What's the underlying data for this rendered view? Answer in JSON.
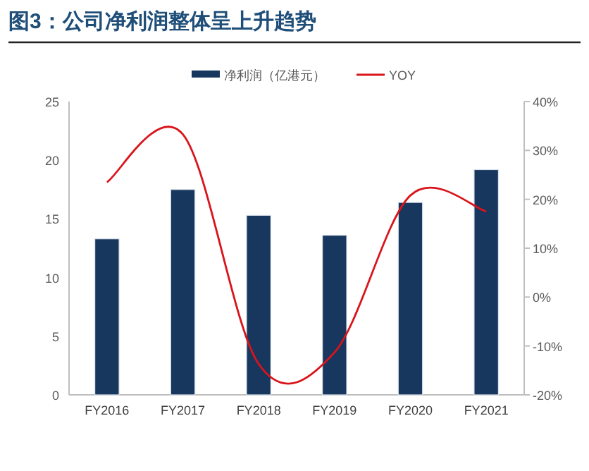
{
  "chart_data": {
    "type": "bar",
    "title": "图3：公司净利润整体呈上升趋势",
    "categories": [
      "FY2016",
      "FY2017",
      "FY2018",
      "FY2019",
      "FY2020",
      "FY2021"
    ],
    "series": [
      {
        "name": "净利润（亿港元）",
        "color": "#17375e",
        "values": [
          13.3,
          17.5,
          15.3,
          13.6,
          16.4,
          19.2
        ]
      },
      {
        "name": "YOY",
        "type": "line",
        "axis": "y2",
        "color": "#d9141b",
        "values": [
          23.5,
          33.3,
          -13.7,
          -11.3,
          20.8,
          17.5
        ]
      }
    ],
    "ylim": [
      0,
      25
    ],
    "yticks": [
      0,
      5,
      10,
      15,
      20,
      25
    ],
    "y2lim": [
      -20,
      40
    ],
    "y2ticks": [
      {
        "value": -20,
        "label": "-20%"
      },
      {
        "value": -10,
        "label": "-10%"
      },
      {
        "value": 0,
        "label": "0%"
      },
      {
        "value": 10,
        "label": "10%"
      },
      {
        "value": 20,
        "label": "20%"
      },
      {
        "value": 30,
        "label": "30%"
      },
      {
        "value": 40,
        "label": "40%"
      }
    ],
    "legend": "top",
    "grid": false,
    "marker": "none",
    "line_style": "solid"
  }
}
